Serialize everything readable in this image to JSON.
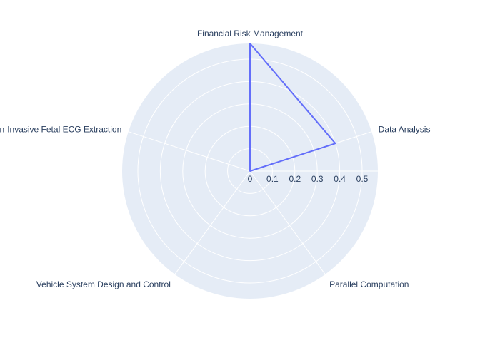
{
  "chart_data": {
    "type": "radar",
    "categories": [
      "Financial Risk Management",
      "Data Analysis",
      "Parallel Computation",
      "Vehicle System Design and Control",
      "Non-Invasive Fetal ECG Extraction"
    ],
    "series": [
      {
        "values": [
          0.57,
          0.4,
          0.0,
          0.0,
          0.0
        ],
        "color": "#636efa"
      }
    ],
    "radial_range": [
      0,
      0.57
    ],
    "radial_ticks": [
      0,
      0.1,
      0.2,
      0.3,
      0.4,
      0.5
    ],
    "radial_tick_labels": [
      "0",
      "0.1",
      "0.2",
      "0.3",
      "0.4",
      "0.5"
    ],
    "grid": true,
    "legend": "none",
    "polar_bgcolor": "#e5ecf6",
    "grid_color": "#ffffff",
    "text_color": "#2a3f5f"
  }
}
